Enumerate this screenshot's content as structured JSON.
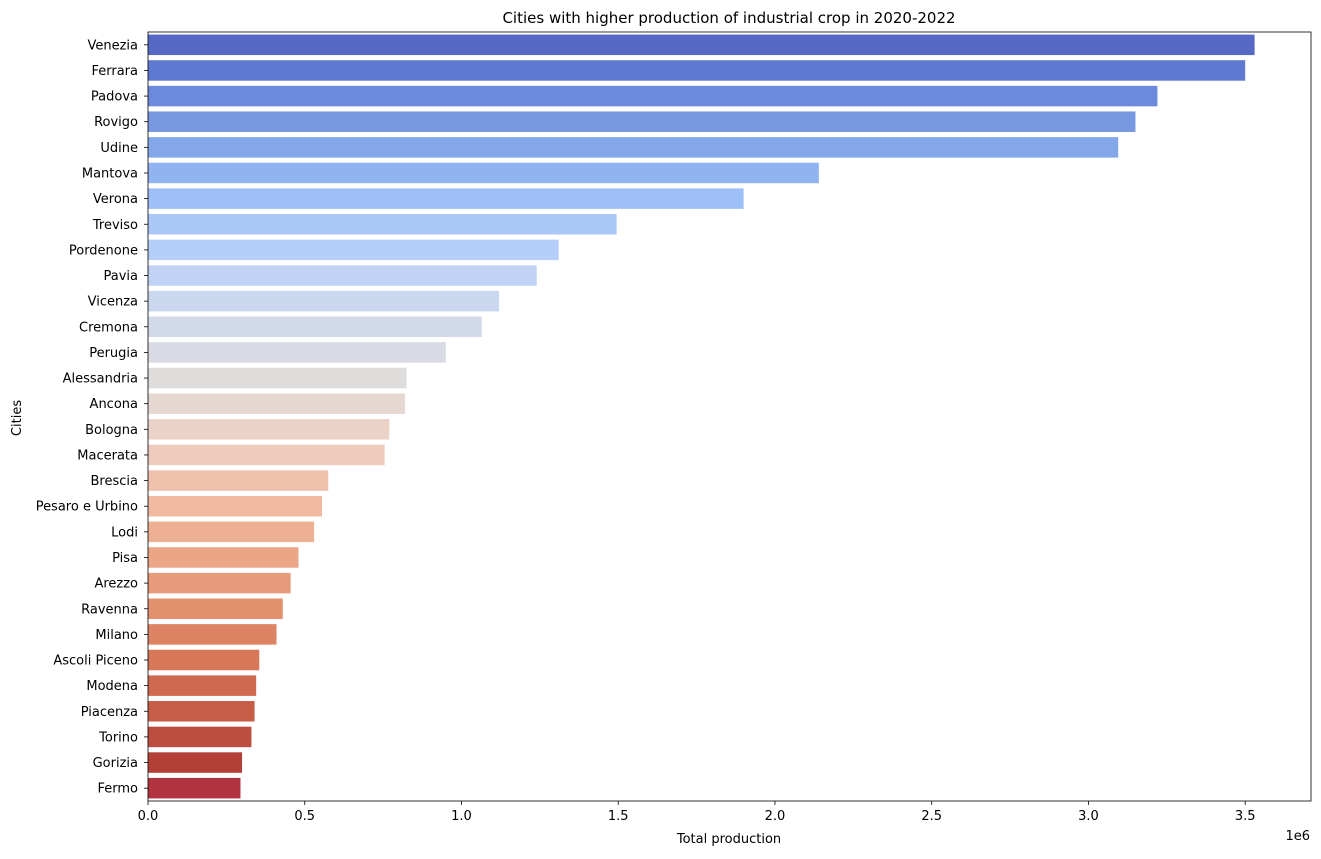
{
  "chart_data": {
    "type": "bar",
    "orientation": "horizontal",
    "title": "Cities with higher production of industrial crop in 2020-2022",
    "xlabel": "Total production",
    "ylabel": "Cities",
    "x_scale_note": "1e6",
    "xlim": [
      0,
      3.71
    ],
    "xticks": [
      0.0,
      0.5,
      1.0,
      1.5,
      2.0,
      2.5,
      3.0,
      3.5
    ],
    "xtick_labels": [
      "0.0",
      "0.5",
      "1.0",
      "1.5",
      "2.0",
      "2.5",
      "3.0",
      "3.5"
    ],
    "grid": false,
    "legend": "none",
    "palette": "coolwarm",
    "categories": [
      "Venezia",
      "Ferrara",
      "Padova",
      "Rovigo",
      "Udine",
      "Mantova",
      "Verona",
      "Treviso",
      "Pordenone",
      "Pavia",
      "Vicenza",
      "Cremona",
      "Perugia",
      "Alessandria",
      "Ancona",
      "Bologna",
      "Macerata",
      "Brescia",
      "Pesaro e Urbino",
      "Lodi",
      "Pisa",
      "Arezzo",
      "Ravenna",
      "Milano",
      "Ascoli Piceno",
      "Modena",
      "Piacenza",
      "Torino",
      "Gorizia",
      "Fermo"
    ],
    "values": [
      3.53,
      3.5,
      3.22,
      3.15,
      3.095,
      2.14,
      1.9,
      1.495,
      1.31,
      1.24,
      1.12,
      1.065,
      0.95,
      0.825,
      0.82,
      0.77,
      0.755,
      0.575,
      0.555,
      0.53,
      0.48,
      0.455,
      0.43,
      0.41,
      0.355,
      0.345,
      0.34,
      0.33,
      0.3,
      0.295
    ],
    "colors": [
      "#5468c4",
      "#5f79d1",
      "#6b8adb",
      "#7899e1",
      "#84a7e9",
      "#91b4f1",
      "#9ebff7",
      "#abc8f9",
      "#b6cefa",
      "#c0d3f5",
      "#c9d8ef",
      "#d2daea",
      "#d9dbe4",
      "#dfdcdc",
      "#e5d8d1",
      "#ebd2c6",
      "#efcbbb",
      "#f0c2ad",
      "#f0b9a0",
      "#eeb093",
      "#eba686",
      "#e79b7a",
      "#e2906e",
      "#dc8464",
      "#d6775a",
      "#cf6a50",
      "#c75c47",
      "#bd4e3f",
      "#b24037",
      "#b0333f"
    ]
  }
}
